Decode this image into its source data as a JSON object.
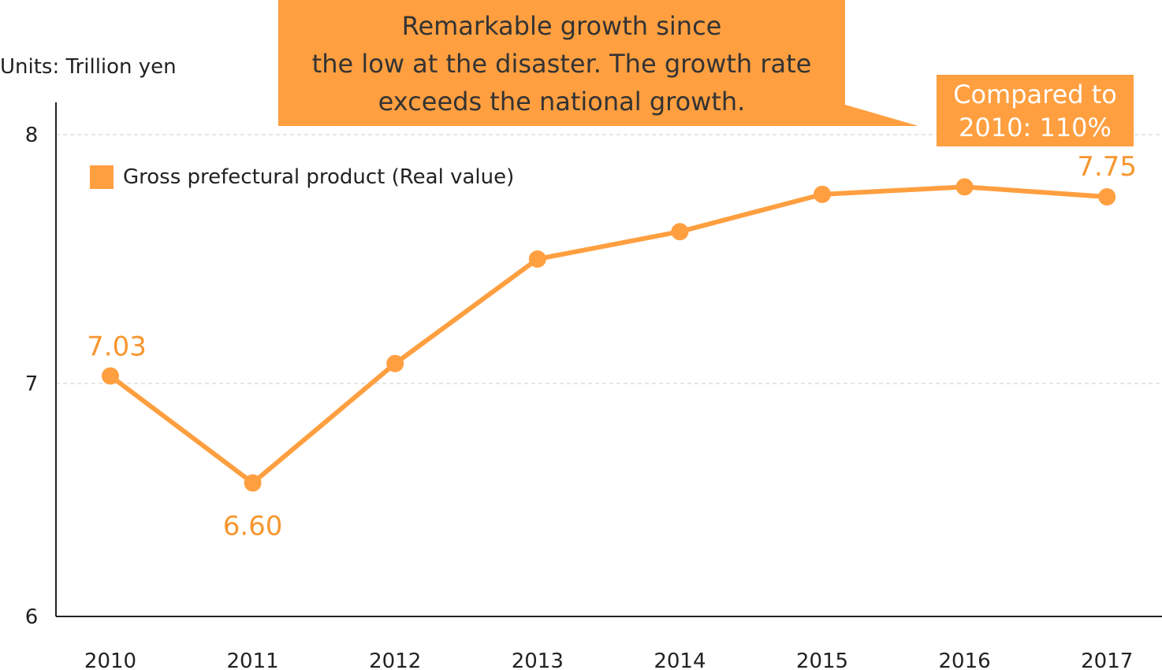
{
  "chart_data": {
    "type": "line",
    "units_label": "Units: Trillion yen",
    "categories": [
      "2010",
      "2011",
      "2012",
      "2013",
      "2014",
      "2015",
      "2016",
      "2017"
    ],
    "series": [
      {
        "name": "Gross prefectural product (Real value)",
        "values": [
          7.03,
          6.6,
          7.08,
          7.5,
          7.61,
          7.76,
          7.79,
          7.75
        ],
        "color": "#ff9f40"
      }
    ],
    "data_labels": [
      {
        "index": 0,
        "text": "7.03"
      },
      {
        "index": 1,
        "text": "6.60"
      },
      {
        "index": 7,
        "text": "7.75"
      }
    ],
    "ylim": [
      6,
      8
    ],
    "yticks": [
      "6",
      "7",
      "8"
    ],
    "grid": "horizontal dashed",
    "legend_position": "top-left",
    "annotations": {
      "callout_lines": [
        "Remarkable growth since",
        "the low at the disaster. The growth rate",
        "exceeds the national growth."
      ],
      "badge_lines": [
        "Compared to",
        "2010: 110%"
      ]
    },
    "label_color": "#f7962f"
  }
}
